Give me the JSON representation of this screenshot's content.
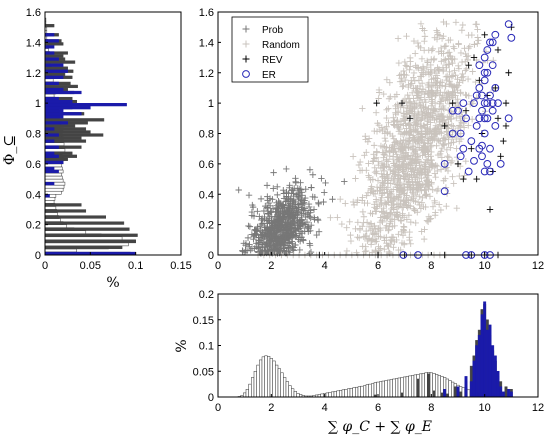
{
  "chart_data": [
    {
      "id": "left",
      "type": "bar",
      "orientation": "horizontal",
      "xlabel": "%",
      "ylabel": "Φ_⊆",
      "xlim": [
        0,
        0.15
      ],
      "ylim": [
        0,
        1.6
      ],
      "xticks": [
        "0",
        "0.05",
        "0.1",
        "0.15"
      ],
      "yticks": [
        "0",
        "0.2",
        "0.4",
        "0.6",
        "0.8",
        "1",
        "1.2",
        "1.4",
        "1.6"
      ],
      "series": [
        {
          "color": "#ffffff",
          "bins_y": [
            0.01,
            0.03,
            0.05,
            0.07,
            0.09,
            0.11,
            0.13,
            0.15,
            0.17,
            0.19,
            0.21,
            0.23,
            0.25,
            0.27,
            0.29,
            0.31,
            0.33,
            0.35,
            0.37,
            0.39,
            0.41,
            0.43,
            0.45,
            0.47,
            0.49,
            0.51,
            0.53,
            0.55,
            0.57,
            0.59,
            0.61,
            0.63,
            0.65,
            0.67,
            0.69,
            0.71,
            0.73,
            0.75,
            0.77,
            0.79,
            0.81,
            0.83,
            0.85,
            0.87,
            0.89,
            0.91,
            0.93,
            0.95,
            0.97,
            0.99,
            1.01,
            1.03,
            1.05,
            1.07,
            1.09,
            1.11,
            1.13,
            1.15,
            1.17,
            1.19,
            1.21,
            1.23,
            1.25,
            1.27,
            1.29,
            1.31,
            1.33,
            1.35,
            1.37,
            1.39,
            1.41,
            1.43,
            1.45,
            1.47,
            1.49,
            1.51,
            1.53,
            1.55
          ],
          "values": [
            0.004,
            0.035,
            0.07,
            0.092,
            0.1,
            0.085,
            0.062,
            0.045,
            0.032,
            0.024,
            0.02,
            0.017,
            0.015,
            0.014,
            0.013,
            0.012,
            0.011,
            0.01,
            0.011,
            0.012,
            0.018,
            0.02,
            0.021,
            0.022,
            0.02,
            0.019,
            0.018,
            0.02,
            0.019,
            0.018,
            0.02,
            0.021,
            0.019,
            0.018,
            0.022,
            0.02,
            0.021,
            0.019,
            0.02,
            0.018,
            0.019,
            0.02,
            0.017,
            0.018,
            0.015,
            0.016,
            0.014,
            0.015,
            0.013,
            0.014,
            0.012,
            0.011,
            0.01,
            0.012,
            0.009,
            0.01,
            0.008,
            0.009,
            0.007,
            0.008,
            0.006,
            0.007,
            0.005,
            0.006,
            0.005,
            0.004,
            0.005,
            0.004,
            0.003,
            0.004,
            0.003,
            0.002,
            0.003,
            0.002,
            0.002,
            0.001,
            0.001,
            0.001
          ]
        },
        {
          "color": "#444444",
          "bins_y": [
            0.01,
            0.05,
            0.09,
            0.13,
            0.17,
            0.21,
            0.25,
            0.29,
            0.33,
            0.61,
            0.63,
            0.65,
            0.67,
            0.71,
            0.75,
            0.77,
            0.79,
            0.81,
            0.83,
            0.85,
            0.87,
            0.89,
            0.93,
            0.97,
            0.99,
            1.01,
            1.03,
            1.07,
            1.09,
            1.11,
            1.13,
            1.17,
            1.19,
            1.21,
            1.23,
            1.27,
            1.29,
            1.31,
            1.33,
            1.39,
            1.41,
            1.45,
            1.51
          ],
          "values": [
            0.094,
            0.085,
            0.1,
            0.102,
            0.093,
            0.087,
            0.067,
            0.045,
            0.04,
            0.02,
            0.025,
            0.035,
            0.03,
            0.04,
            0.045,
            0.04,
            0.064,
            0.05,
            0.045,
            0.033,
            0.047,
            0.065,
            0.043,
            0.03,
            0.025,
            0.035,
            0.03,
            0.032,
            0.025,
            0.036,
            0.028,
            0.03,
            0.022,
            0.031,
            0.025,
            0.033,
            0.022,
            0.02,
            0.025,
            0.02,
            0.018,
            0.015,
            0.01
          ]
        },
        {
          "color": "#1a1aaa",
          "bins_y": [
            0.01,
            0.39,
            0.47,
            0.55,
            0.57,
            0.61,
            0.65,
            0.67,
            0.71,
            0.75,
            0.79,
            0.83,
            0.87,
            0.91,
            0.93,
            0.95,
            0.97,
            0.99,
            1.01,
            1.03,
            1.07,
            1.09,
            1.13,
            1.17,
            1.21,
            1.25,
            1.29,
            1.33,
            1.37,
            1.41,
            1.45
          ],
          "values": [
            0.1,
            0.005,
            0.01,
            0.015,
            0.01,
            0.02,
            0.015,
            0.01,
            0.015,
            0.01,
            0.015,
            0.01,
            0.025,
            0.02,
            0.04,
            0.02,
            0.05,
            0.09,
            0.03,
            0.015,
            0.04,
            0.02,
            0.015,
            0.02,
            0.025,
            0.02,
            0.015,
            0.01,
            0.01,
            0.015,
            0.01
          ]
        }
      ]
    },
    {
      "id": "scatter",
      "type": "scatter",
      "xlim": [
        0,
        12
      ],
      "ylim": [
        0,
        1.6
      ],
      "xticks": [
        "0",
        "2",
        "4",
        "6",
        "8",
        "10",
        "12"
      ],
      "yticks": [
        "0",
        "0.2",
        "0.4",
        "0.6",
        "0.8",
        "1",
        "1.2",
        "1.4",
        "1.6"
      ],
      "legend_position": "top-left",
      "series": [
        {
          "name": "Prob",
          "marker": "+",
          "color": "#777777",
          "center": [
            2.4,
            0.18
          ],
          "spread": [
            0.6,
            0.12
          ],
          "slope": 0.11,
          "count": 700
        },
        {
          "name": "Random",
          "marker": "+",
          "color": "#c9c3bd",
          "center": [
            7.4,
            0.72
          ],
          "spread": [
            1.0,
            0.28
          ],
          "slope": 0.22,
          "count": 1400
        },
        {
          "name": "REV",
          "marker": "+",
          "color": "#000000",
          "points": [
            [
              5.95,
              1.0
            ],
            [
              6.9,
              1.0
            ],
            [
              7.2,
              0.9
            ],
            [
              8.5,
              0.85
            ],
            [
              9.0,
              0.6
            ],
            [
              9.3,
              0.95
            ],
            [
              9.5,
              0.7
            ],
            [
              9.7,
              0.5
            ],
            [
              9.9,
              0.8
            ],
            [
              10.1,
              1.05
            ],
            [
              10.3,
              0.55
            ],
            [
              10.4,
              1.1
            ],
            [
              10.5,
              0.9
            ],
            [
              10.7,
              0.75
            ],
            [
              10.8,
              1.0
            ],
            [
              10.9,
              1.2
            ],
            [
              11.0,
              1.5
            ],
            [
              10.2,
              0.3
            ],
            [
              10.6,
              0.65
            ],
            [
              9.6,
              1.3
            ],
            [
              9.8,
              1.15
            ],
            [
              10.0,
              1.45
            ],
            [
              9.4,
              1.25
            ],
            [
              8.8,
              1.0
            ],
            [
              9.2,
              0.5
            ],
            [
              10.5,
              1.35
            ],
            [
              10.8,
              0.85
            ],
            [
              3.8,
              0.0
            ],
            [
              6.0,
              0.0
            ],
            [
              7.0,
              0.0
            ],
            [
              8.5,
              0.0
            ],
            [
              9.5,
              0.0
            ],
            [
              10.0,
              0.0
            ],
            [
              10.5,
              0.0
            ]
          ]
        },
        {
          "name": "ER",
          "marker": "o",
          "color": "#2a2ab8",
          "points": [
            [
              8.5,
              0.6
            ],
            [
              8.5,
              0.42
            ],
            [
              8.8,
              0.8
            ],
            [
              9.0,
              0.95
            ],
            [
              9.1,
              0.65
            ],
            [
              9.2,
              1.0
            ],
            [
              9.3,
              0.9
            ],
            [
              9.4,
              0.55
            ],
            [
              9.5,
              0.75
            ],
            [
              9.6,
              0.62
            ],
            [
              9.6,
              1.0
            ],
            [
              9.7,
              0.85
            ],
            [
              9.7,
              1.05
            ],
            [
              9.8,
              0.9
            ],
            [
              9.8,
              1.1
            ],
            [
              9.9,
              0.72
            ],
            [
              9.9,
              0.95
            ],
            [
              10.0,
              1.0
            ],
            [
              10.0,
              1.15
            ],
            [
              10.0,
              0.8
            ],
            [
              10.1,
              0.9
            ],
            [
              10.1,
              1.2
            ],
            [
              10.2,
              0.7
            ],
            [
              10.2,
              1.05
            ],
            [
              10.3,
              0.95
            ],
            [
              10.3,
              1.25
            ],
            [
              10.4,
              0.85
            ],
            [
              10.4,
              1.1
            ],
            [
              10.5,
              1.0
            ],
            [
              10.6,
              0.6
            ],
            [
              10.0,
              0.55
            ],
            [
              9.9,
              0.65
            ],
            [
              10.1,
              0.6
            ],
            [
              9.8,
              0.7
            ],
            [
              10.2,
              0.55
            ],
            [
              10.0,
              1.3
            ],
            [
              10.1,
              1.35
            ],
            [
              10.2,
              1.4
            ],
            [
              10.4,
              1.45
            ],
            [
              10.3,
              1.4
            ],
            [
              10.9,
              1.52
            ],
            [
              11.0,
              1.43
            ],
            [
              10.9,
              0.9
            ],
            [
              9.8,
              1.25
            ],
            [
              10.0,
              1.2
            ],
            [
              9.1,
              0.8
            ],
            [
              8.8,
              0.95
            ],
            [
              9.2,
              0.7
            ],
            [
              10.1,
              1.0
            ],
            [
              9.9,
              1.05
            ],
            [
              10.3,
              1.0
            ],
            [
              10.0,
              0.9
            ],
            [
              7.5,
              0.0
            ],
            [
              9.3,
              0.0
            ],
            [
              9.5,
              0.0
            ],
            [
              10.0,
              0.0
            ],
            [
              10.2,
              0.0
            ],
            [
              6.95,
              0.0
            ]
          ]
        }
      ]
    },
    {
      "id": "bottom",
      "type": "bar",
      "xlabel": "∑ φ_C + ∑ φ_E",
      "ylabel": "%",
      "xlim": [
        0,
        12
      ],
      "ylim": [
        0,
        0.2
      ],
      "xticks": [
        "0",
        "2",
        "4",
        "6",
        "8",
        "10",
        "12"
      ],
      "yticks": [
        "0",
        "0.05",
        "0.1",
        "0.15",
        "0.2"
      ],
      "series": [
        {
          "color": "#ffffff",
          "bins_x": [
            0.8,
            0.9,
            1.0,
            1.1,
            1.2,
            1.3,
            1.4,
            1.5,
            1.6,
            1.7,
            1.8,
            1.9,
            2.0,
            2.1,
            2.2,
            2.3,
            2.4,
            2.5,
            2.6,
            2.7,
            2.8,
            2.9,
            3.0,
            3.1,
            3.2,
            3.3,
            3.4,
            3.5,
            3.6,
            3.7,
            3.8,
            3.9,
            4.0,
            4.1,
            4.2,
            4.3,
            4.4,
            4.5,
            4.6,
            4.7,
            4.8,
            4.9,
            5.0,
            5.1,
            5.2,
            5.3,
            5.4,
            5.5,
            5.6,
            5.7,
            5.8,
            5.9,
            6.0,
            6.1,
            6.2,
            6.3,
            6.4,
            6.5,
            6.6,
            6.7,
            6.8,
            6.9,
            7.0,
            7.1,
            7.2,
            7.3,
            7.4,
            7.5,
            7.6,
            7.7,
            7.8,
            7.9,
            8.0,
            8.1,
            8.2,
            8.3,
            8.4,
            8.5,
            8.6,
            8.7,
            8.8,
            8.9,
            9.0,
            9.1,
            9.2,
            9.3,
            9.4,
            9.5,
            9.6,
            9.7,
            9.8,
            9.9,
            10.0,
            10.1,
            10.2,
            10.3,
            10.4,
            10.5,
            10.6,
            10.7,
            10.8,
            10.9,
            11.0
          ],
          "values": [
            0.001,
            0.003,
            0.008,
            0.015,
            0.025,
            0.038,
            0.05,
            0.062,
            0.072,
            0.078,
            0.08,
            0.079,
            0.075,
            0.07,
            0.062,
            0.055,
            0.047,
            0.038,
            0.03,
            0.022,
            0.016,
            0.011,
            0.007,
            0.005,
            0.003,
            0.002,
            0.002,
            0.002,
            0.003,
            0.004,
            0.005,
            0.006,
            0.007,
            0.008,
            0.009,
            0.01,
            0.011,
            0.012,
            0.013,
            0.014,
            0.015,
            0.016,
            0.017,
            0.018,
            0.019,
            0.02,
            0.021,
            0.022,
            0.024,
            0.025,
            0.026,
            0.028,
            0.029,
            0.03,
            0.031,
            0.032,
            0.033,
            0.034,
            0.035,
            0.036,
            0.037,
            0.038,
            0.039,
            0.04,
            0.041,
            0.042,
            0.043,
            0.044,
            0.045,
            0.046,
            0.047,
            0.048,
            0.047,
            0.046,
            0.044,
            0.042,
            0.04,
            0.038,
            0.035,
            0.032,
            0.029,
            0.026,
            0.023,
            0.02,
            0.018,
            0.016,
            0.014,
            0.012,
            0.01,
            0.009,
            0.008,
            0.007,
            0.006,
            0.005,
            0.004,
            0.004,
            0.003,
            0.003,
            0.002,
            0.002,
            0.001,
            0.001,
            0.001
          ]
        },
        {
          "color": "#444444",
          "bins_x": [
            5.9,
            6.9,
            7.5,
            7.9,
            8.1,
            8.4,
            8.6,
            8.9,
            9.1,
            9.3,
            9.5,
            9.6,
            9.7,
            9.8,
            9.9,
            10.0,
            10.1,
            10.2,
            10.3,
            10.4,
            10.5,
            10.6,
            10.8,
            11.0
          ],
          "values": [
            0.004,
            0.008,
            0.035,
            0.045,
            0.012,
            0.008,
            0.006,
            0.02,
            0.01,
            0.03,
            0.06,
            0.08,
            0.11,
            0.13,
            0.17,
            0.18,
            0.15,
            0.12,
            0.09,
            0.07,
            0.04,
            0.03,
            0.02,
            0.015
          ]
        },
        {
          "color": "#1a1aaa",
          "bins_x": [
            8.5,
            9.0,
            9.3,
            9.5,
            9.6,
            9.7,
            9.8,
            9.9,
            10.0,
            10.1,
            10.2,
            10.3,
            10.4,
            10.5,
            10.6,
            10.7,
            10.9,
            11.0
          ],
          "values": [
            0.015,
            0.02,
            0.04,
            0.03,
            0.07,
            0.1,
            0.12,
            0.16,
            0.185,
            0.13,
            0.14,
            0.1,
            0.08,
            0.05,
            0.02,
            0.01,
            0.015,
            0.01
          ]
        }
      ]
    }
  ]
}
